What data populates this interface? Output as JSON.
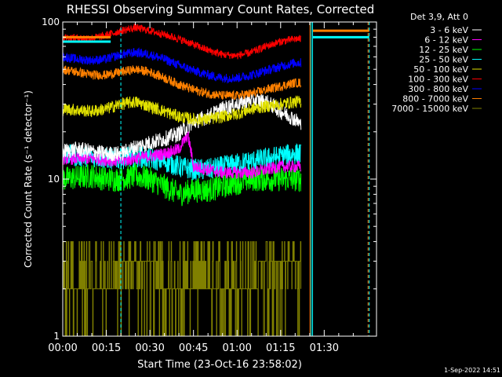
{
  "chart_data": {
    "type": "line",
    "title": "RHESSI Observing Summary Count Rates, Corrected",
    "xlabel": "Start Time (23-Oct-16 23:58:02)",
    "ylabel": "Corrected Count Rate (s⁻¹ detector⁻¹)",
    "yscale": "log",
    "ylim": [
      1,
      100
    ],
    "xlim_minutes": [
      0,
      108
    ],
    "x_ticks": [
      "00:00",
      "00:15",
      "00:30",
      "00:45",
      "01:00",
      "01:15",
      "01:30"
    ],
    "y_ticks": [
      "1",
      "10",
      "100"
    ],
    "legend_title": "Det 3,9, Att 0",
    "legend_position": "right",
    "footer": "1-Sep-2022 14:51",
    "vertical_markers_minutes": [
      0,
      20,
      85.5,
      86,
      105.5
    ],
    "series": [
      {
        "name": "3 - 6 keV",
        "color": "#ffffff",
        "noise": 0.05,
        "pts": [
          [
            0,
            15
          ],
          [
            5,
            15.5
          ],
          [
            10,
            15
          ],
          [
            15,
            14.5
          ],
          [
            20,
            14.5
          ],
          [
            25,
            16
          ],
          [
            30,
            17
          ],
          [
            35,
            18
          ],
          [
            40,
            19.5
          ],
          [
            45,
            23
          ],
          [
            50,
            25
          ],
          [
            55,
            28
          ],
          [
            60,
            30
          ],
          [
            65,
            32
          ],
          [
            70,
            31
          ],
          [
            75,
            27
          ],
          [
            80,
            24
          ],
          [
            82,
            22
          ]
        ]
      },
      {
        "name": "6 - 12 keV",
        "color": "#ff00ff",
        "noise": 0.04,
        "pts": [
          [
            0,
            13.5
          ],
          [
            10,
            13.5
          ],
          [
            20,
            13
          ],
          [
            25,
            13.5
          ],
          [
            30,
            14
          ],
          [
            35,
            14.5
          ],
          [
            40,
            15.5
          ],
          [
            43,
            19
          ],
          [
            45,
            12
          ],
          [
            50,
            11.5
          ],
          [
            55,
            11
          ],
          [
            60,
            11
          ],
          [
            65,
            11
          ],
          [
            70,
            11.5
          ],
          [
            75,
            12
          ],
          [
            80,
            12
          ],
          [
            82,
            12
          ]
        ]
      },
      {
        "name": "12 - 25 keV",
        "color": "#00ff00",
        "noise": 0.08,
        "pts": [
          [
            0,
            10
          ],
          [
            10,
            10.5
          ],
          [
            15,
            10
          ],
          [
            20,
            10
          ],
          [
            25,
            10.5
          ],
          [
            30,
            10
          ],
          [
            35,
            9
          ],
          [
            40,
            8
          ],
          [
            45,
            8.5
          ],
          [
            50,
            8.5
          ],
          [
            55,
            9
          ],
          [
            60,
            9.5
          ],
          [
            65,
            10
          ],
          [
            70,
            10
          ],
          [
            75,
            10
          ],
          [
            80,
            10
          ],
          [
            82,
            10
          ]
        ]
      },
      {
        "name": "25 - 50 keV",
        "color": "#00ffff",
        "noise": 0.07,
        "pts": [
          [
            0,
            14.5
          ],
          [
            5,
            14
          ],
          [
            10,
            14
          ],
          [
            15,
            13.5
          ],
          [
            20,
            13.5
          ],
          [
            25,
            14
          ],
          [
            30,
            13.5
          ],
          [
            35,
            13
          ],
          [
            40,
            12
          ],
          [
            45,
            11.5
          ],
          [
            50,
            11.5
          ],
          [
            55,
            12
          ],
          [
            60,
            12.5
          ],
          [
            65,
            13
          ],
          [
            70,
            13.5
          ],
          [
            75,
            14
          ],
          [
            80,
            14.5
          ],
          [
            82,
            14.5
          ]
        ]
      },
      {
        "name": "50 - 100 keV",
        "color": "#e0e000",
        "noise": 0.04,
        "pts": [
          [
            0,
            28
          ],
          [
            5,
            27.5
          ],
          [
            10,
            27
          ],
          [
            15,
            28
          ],
          [
            20,
            30
          ],
          [
            25,
            31
          ],
          [
            30,
            29
          ],
          [
            35,
            27
          ],
          [
            40,
            25
          ],
          [
            45,
            24
          ],
          [
            50,
            24
          ],
          [
            55,
            25
          ],
          [
            60,
            26
          ],
          [
            65,
            28
          ],
          [
            70,
            29
          ],
          [
            75,
            30
          ],
          [
            80,
            31
          ],
          [
            82,
            31
          ]
        ]
      },
      {
        "name": "100 - 300 keV",
        "color": "#ff0000",
        "noise": 0.025,
        "pts": [
          [
            0,
            80
          ],
          [
            5,
            79
          ],
          [
            10,
            79
          ],
          [
            15,
            82
          ],
          [
            20,
            88
          ],
          [
            25,
            92
          ],
          [
            30,
            88
          ],
          [
            35,
            83
          ],
          [
            40,
            78
          ],
          [
            45,
            72
          ],
          [
            50,
            66
          ],
          [
            55,
            62
          ],
          [
            60,
            61
          ],
          [
            65,
            64
          ],
          [
            70,
            70
          ],
          [
            75,
            75
          ],
          [
            80,
            78
          ],
          [
            82,
            78
          ]
        ]
      },
      {
        "name": "300 - 800 keV",
        "color": "#0000ff",
        "noise": 0.03,
        "pts": [
          [
            0,
            60
          ],
          [
            5,
            58
          ],
          [
            10,
            57
          ],
          [
            15,
            58
          ],
          [
            20,
            62
          ],
          [
            25,
            64
          ],
          [
            30,
            62
          ],
          [
            35,
            58
          ],
          [
            40,
            53
          ],
          [
            45,
            49
          ],
          [
            50,
            46
          ],
          [
            55,
            44
          ],
          [
            60,
            44
          ],
          [
            65,
            46
          ],
          [
            70,
            49
          ],
          [
            75,
            52
          ],
          [
            80,
            55
          ],
          [
            82,
            55
          ]
        ]
      },
      {
        "name": "800 - 7000 keV",
        "color": "#ff8000",
        "noise": 0.03,
        "pts": [
          [
            0,
            50
          ],
          [
            5,
            48
          ],
          [
            10,
            46
          ],
          [
            15,
            46
          ],
          [
            20,
            48
          ],
          [
            25,
            50
          ],
          [
            30,
            48
          ],
          [
            35,
            44
          ],
          [
            40,
            40
          ],
          [
            45,
            37
          ],
          [
            50,
            35
          ],
          [
            55,
            34
          ],
          [
            60,
            34
          ],
          [
            65,
            35
          ],
          [
            70,
            37
          ],
          [
            75,
            39
          ],
          [
            80,
            41
          ],
          [
            82,
            41
          ]
        ]
      },
      {
        "name": "7000 - 15000 keV",
        "color": "#808000",
        "noise": 0.0,
        "pts": [
          [
            0,
            2
          ],
          [
            15,
            2.2
          ],
          [
            20,
            2.5
          ],
          [
            25,
            3
          ],
          [
            30,
            2.8
          ],
          [
            35,
            2.2
          ],
          [
            40,
            1.8
          ],
          [
            45,
            1.7
          ],
          [
            50,
            1.6
          ],
          [
            55,
            1.7
          ],
          [
            60,
            2
          ],
          [
            65,
            2.3
          ],
          [
            70,
            2.7
          ],
          [
            75,
            3
          ],
          [
            80,
            3
          ],
          [
            82,
            3
          ]
        ]
      }
    ],
    "flat_segments": [
      {
        "color": "#ff8000",
        "x": [
          0,
          16.5
        ],
        "y": 80
      },
      {
        "color": "#00ffff",
        "x": [
          0,
          16.5
        ],
        "y": 75
      },
      {
        "color": "#ff8000",
        "x": [
          86,
          105.5
        ],
        "y": 88
      },
      {
        "color": "#00ffff",
        "x": [
          86,
          105.5
        ],
        "y": 80
      }
    ]
  }
}
